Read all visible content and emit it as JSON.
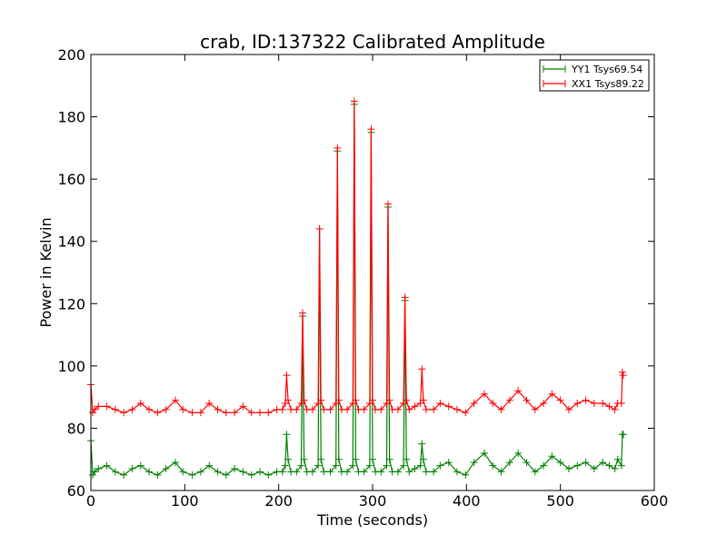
{
  "chart_data": {
    "type": "line",
    "title": "crab, ID:137322 Calibrated Amplitude",
    "xlabel": "Time (seconds)",
    "ylabel": "Power in Kelvin",
    "xlim": [
      0,
      600
    ],
    "ylim": [
      60,
      200
    ],
    "xticks": [
      0,
      100,
      200,
      300,
      400,
      500,
      600
    ],
    "yticks": [
      60,
      80,
      100,
      120,
      140,
      160,
      180,
      200
    ],
    "grid": false,
    "legend_position": "top-right",
    "series": [
      {
        "name": "YY1 Tsys69.54",
        "color": "#008000",
        "marker": "+",
        "x": [
          0,
          2,
          4,
          8,
          17,
          26,
          35,
          44,
          53,
          62,
          71,
          80,
          90,
          98,
          108,
          117,
          126,
          135,
          144,
          153,
          162,
          171,
          180,
          189,
          198,
          204,
          207,
          208.5,
          210,
          213,
          219,
          224,
          225.5,
          227,
          230,
          236,
          242,
          243.5,
          245,
          248,
          255,
          261,
          262.5,
          264,
          267,
          273,
          279,
          280.5,
          282,
          285,
          291,
          297,
          298.5,
          300,
          303,
          309,
          315,
          316.5,
          318,
          321,
          327,
          333,
          334.5,
          336,
          339,
          345,
          351,
          352.5,
          354,
          357,
          365,
          372,
          381,
          390,
          399,
          408,
          419,
          428,
          437,
          446,
          455,
          464,
          473,
          482,
          491,
          500,
          509,
          518,
          527,
          536,
          545,
          552,
          558,
          561,
          565,
          566,
          567
        ],
        "values": [
          76,
          65,
          66,
          67,
          68,
          66,
          65,
          67,
          68,
          66,
          65,
          67,
          69,
          66,
          65,
          66,
          68,
          66,
          65,
          67,
          66,
          65,
          66,
          65,
          66,
          66,
          68,
          78,
          70,
          66,
          66,
          68,
          116,
          70,
          66,
          66,
          68,
          144,
          70,
          66,
          66,
          68,
          169,
          70,
          66,
          66,
          68,
          184,
          70,
          66,
          66,
          68,
          175,
          70,
          66,
          66,
          68,
          151,
          70,
          66,
          66,
          68,
          121,
          70,
          66,
          67,
          68,
          75,
          70,
          66,
          66,
          68,
          69,
          66,
          65,
          69,
          72,
          68,
          66,
          69,
          72,
          69,
          66,
          68,
          71,
          69,
          67,
          68,
          69,
          67,
          69,
          68,
          67,
          70,
          68,
          78,
          78
        ]
      },
      {
        "name": "XX1 Tsys89.22",
        "color": "#ff0000",
        "marker": "+",
        "x": [
          0,
          2,
          4,
          8,
          17,
          26,
          35,
          44,
          53,
          62,
          71,
          80,
          90,
          98,
          108,
          117,
          126,
          135,
          144,
          153,
          162,
          171,
          180,
          189,
          198,
          204,
          207,
          208.5,
          210,
          213,
          219,
          224,
          225.5,
          227,
          230,
          236,
          242,
          243.5,
          245,
          248,
          255,
          261,
          262.5,
          264,
          267,
          273,
          279,
          280.5,
          282,
          285,
          291,
          297,
          298.5,
          300,
          303,
          309,
          315,
          316.5,
          318,
          321,
          327,
          333,
          334.5,
          336,
          339,
          345,
          351,
          352.5,
          354,
          357,
          365,
          372,
          381,
          390,
          399,
          408,
          419,
          428,
          437,
          446,
          455,
          464,
          473,
          482,
          491,
          500,
          509,
          518,
          527,
          536,
          545,
          552,
          558,
          561,
          565,
          566,
          567
        ],
        "values": [
          94,
          85,
          86,
          87,
          87,
          86,
          85,
          86,
          88,
          86,
          85,
          86,
          89,
          86,
          85,
          85,
          88,
          86,
          85,
          85,
          87,
          85,
          85,
          85,
          86,
          86,
          88,
          97,
          89,
          86,
          86,
          88,
          117,
          89,
          86,
          86,
          88,
          144,
          89,
          86,
          86,
          88,
          170,
          89,
          86,
          86,
          88,
          185,
          89,
          86,
          86,
          88,
          176,
          89,
          86,
          86,
          88,
          152,
          89,
          86,
          86,
          88,
          122,
          89,
          86,
          87,
          88,
          99,
          89,
          86,
          86,
          88,
          87,
          86,
          85,
          88,
          91,
          88,
          86,
          89,
          92,
          89,
          86,
          88,
          91,
          89,
          86,
          88,
          89,
          88,
          88,
          87,
          86,
          88,
          88,
          98,
          97
        ]
      }
    ]
  }
}
